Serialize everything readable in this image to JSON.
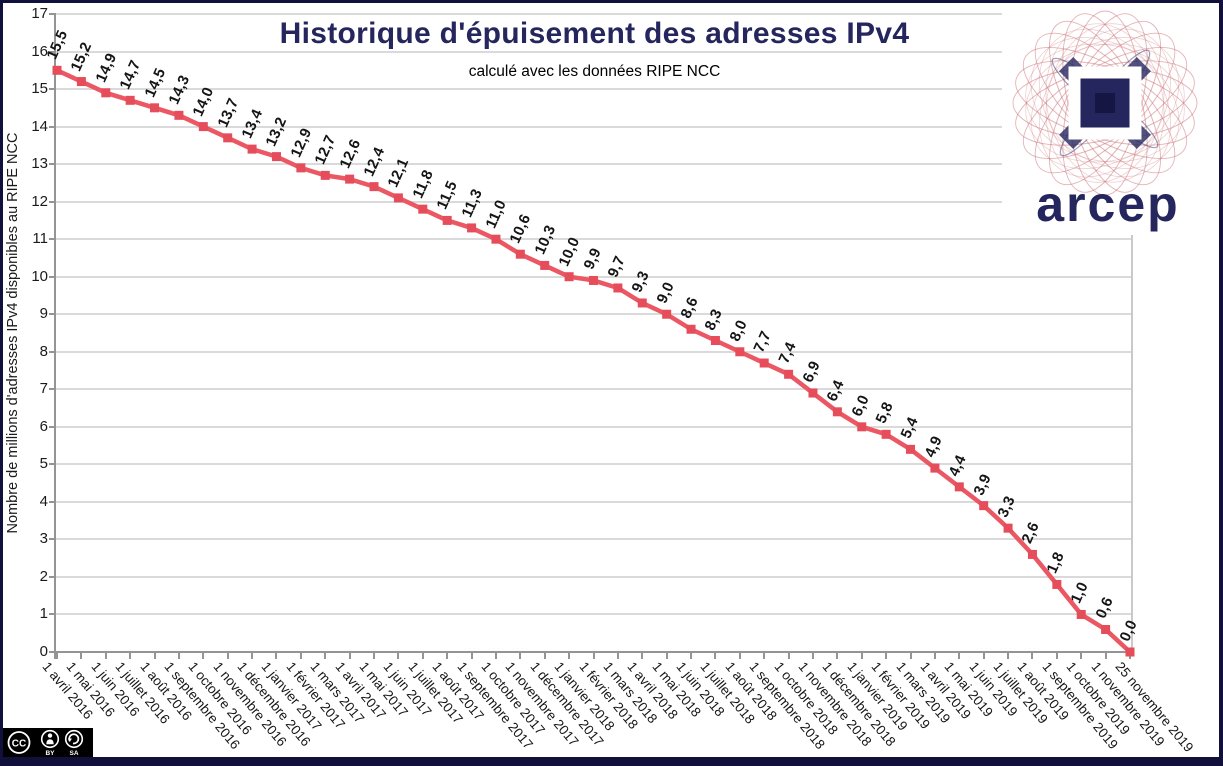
{
  "page": {
    "frame_color": "#10103a",
    "background": "#ffffff"
  },
  "chart_data": {
    "type": "line",
    "title": "Historique d'épuisement des adresses IPv4",
    "subtitle": "calculé avec les données RIPE NCC",
    "ylabel": "Nombre de millions d'adresses IPv4 disponibles au RIPE NCC",
    "xlabel": "",
    "ylim": [
      0,
      17
    ],
    "ytick_step": 1,
    "grid": true,
    "legend_position": "none",
    "line_color": "#eb5763",
    "marker_color": "#e64d5a",
    "marker_shape": "square",
    "decimal_separator": ",",
    "categories": [
      "1 avril 2016",
      "1 mai 2016",
      "1 juin 2016",
      "1 juillet 2016",
      "1 août 2016",
      "1 septembre 2016",
      "1 octobre 2016",
      "1 novembre 2016",
      "1 décembre 2016",
      "1 janvier 2017",
      "1 février 2017",
      "1 mars 2017",
      "1 avril 2017",
      "1 mai 2017",
      "1 juin 2017",
      "1 juillet 2017",
      "1 août 2017",
      "1 septembre 2017",
      "1 octobre 2017",
      "1 novembre 2017",
      "1 décembre 2017",
      "1 janvier 2018",
      "1 février 2018",
      "1 mars 2018",
      "1 avril 2018",
      "1 mai 2018",
      "1 juin 2018",
      "1 juillet 2018",
      "1 août 2018",
      "1 septembre 2018",
      "1 octobre 2018",
      "1 novembre 2018",
      "1 décembre 2018",
      "1 janvier 2019",
      "1 février 2019",
      "1 mars 2019",
      "1 avril 2019",
      "1 mai 2019",
      "1 juin 2019",
      "1 juillet 2019",
      "1 août 2019",
      "1 septembre 2019",
      "1 octobre 2019",
      "1 novembre 2019",
      "25 novembre 2019"
    ],
    "values": [
      15.5,
      15.2,
      14.9,
      14.7,
      14.5,
      14.3,
      14.0,
      13.7,
      13.4,
      13.2,
      12.9,
      12.7,
      12.6,
      12.4,
      12.1,
      11.8,
      11.5,
      11.3,
      11.0,
      10.6,
      10.3,
      10.0,
      9.9,
      9.7,
      9.3,
      9.0,
      8.6,
      8.3,
      8.0,
      7.7,
      7.4,
      6.9,
      6.4,
      6.0,
      5.8,
      5.4,
      4.9,
      4.4,
      3.9,
      3.3,
      2.6,
      1.8,
      1.0,
      0.6,
      0.0
    ]
  },
  "logo": {
    "text": "arcep",
    "navy": "#26265e",
    "red": "#c96a6f"
  },
  "badge": {
    "cc": "CC",
    "by": "BY",
    "sa": "SA"
  }
}
